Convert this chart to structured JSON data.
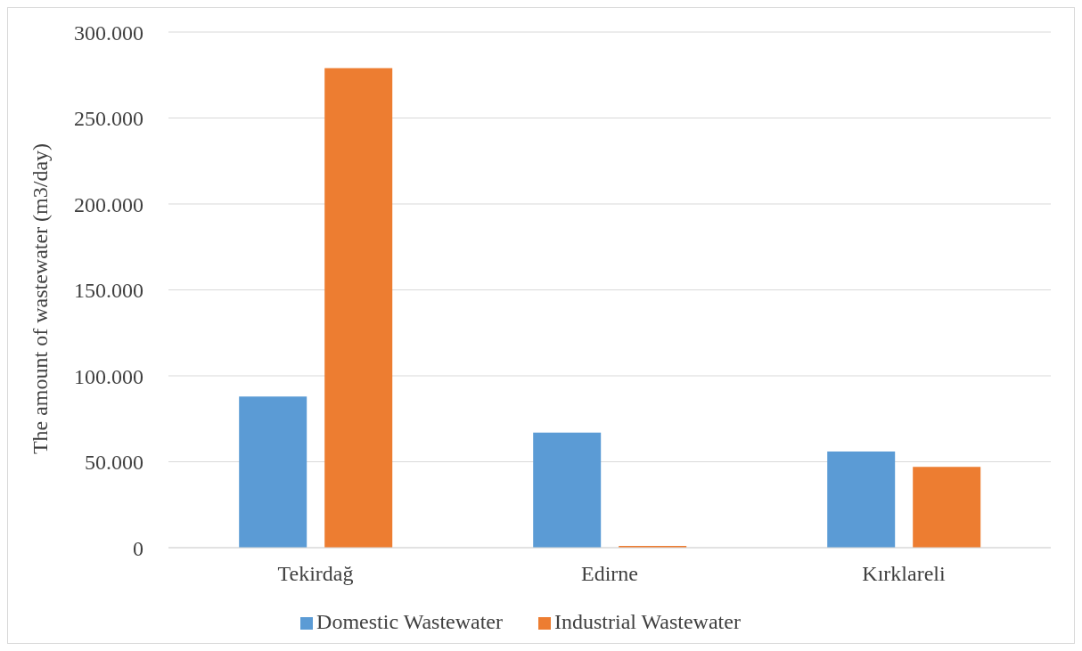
{
  "chart_data": {
    "type": "bar",
    "ylabel": "The amount of wastewater (m3/day)",
    "categories": [
      "Tekirdağ",
      "Edirne",
      "Kırklareli"
    ],
    "series": [
      {
        "name": "Domestic Wastewater",
        "color": "#5b9bd5",
        "values": [
          88000,
          67000,
          56000
        ]
      },
      {
        "name": "Industrial Wastewater",
        "color": "#ed7d31",
        "values": [
          279000,
          1000,
          47000
        ]
      }
    ],
    "ylim": [
      0,
      300000
    ],
    "yticks": [
      {
        "value": 0,
        "label": "0"
      },
      {
        "value": 50000,
        "label": "50.000"
      },
      {
        "value": 100000,
        "label": "100.000"
      },
      {
        "value": 150000,
        "label": "150.000"
      },
      {
        "value": 200000,
        "label": "200.000"
      },
      {
        "value": 250000,
        "label": "250.000"
      },
      {
        "value": 300000,
        "label": "300.000"
      }
    ],
    "grid": "y",
    "legend": "bottom"
  }
}
